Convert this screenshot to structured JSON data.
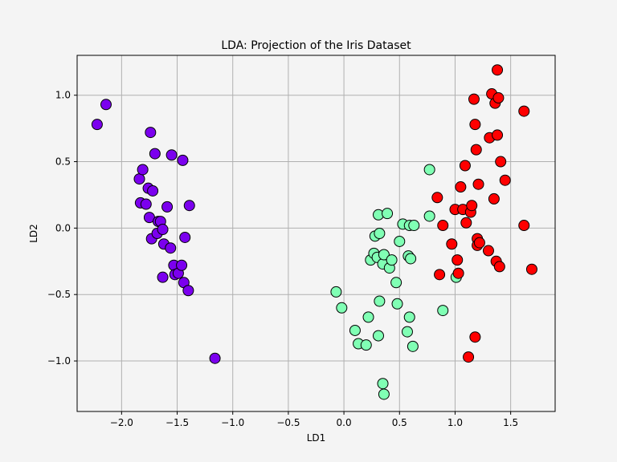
{
  "chart_data": {
    "type": "scatter",
    "title": "LDA: Projection of the Iris Dataset",
    "xlabel": "LD1",
    "ylabel": "LD2",
    "xlim": [
      -2.4,
      1.9
    ],
    "ylim": [
      -1.38,
      1.3
    ],
    "xticks": [
      -2.0,
      -1.5,
      -1.0,
      -0.5,
      0.0,
      0.5,
      1.0,
      1.5
    ],
    "xtick_labels": [
      "−2.0",
      "−1.5",
      "−1.0",
      "−0.5",
      "0.0",
      "0.5",
      "1.0",
      "1.5"
    ],
    "yticks": [
      -1.0,
      -0.5,
      0.0,
      0.5,
      1.0
    ],
    "ytick_labels": [
      "−1.0",
      "−0.5",
      "0.0",
      "0.5",
      "1.0"
    ],
    "grid": true,
    "series": [
      {
        "color": "#7b00ee",
        "points": [
          [
            -2.22,
            0.78
          ],
          [
            -2.14,
            0.93
          ],
          [
            -1.84,
            0.37
          ],
          [
            -1.83,
            0.19
          ],
          [
            -1.81,
            0.44
          ],
          [
            -1.78,
            0.18
          ],
          [
            -1.76,
            0.3
          ],
          [
            -1.75,
            0.08
          ],
          [
            -1.74,
            0.72
          ],
          [
            -1.73,
            -0.08
          ],
          [
            -1.72,
            0.28
          ],
          [
            -1.7,
            0.56
          ],
          [
            -1.68,
            -0.04
          ],
          [
            -1.67,
            0.05
          ],
          [
            -1.65,
            0.05
          ],
          [
            -1.63,
            -0.01
          ],
          [
            -1.63,
            -0.37
          ],
          [
            -1.62,
            -0.12
          ],
          [
            -1.59,
            0.16
          ],
          [
            -1.56,
            -0.15
          ],
          [
            -1.55,
            0.55
          ],
          [
            -1.53,
            -0.28
          ],
          [
            -1.52,
            -0.35
          ],
          [
            -1.49,
            -0.34
          ],
          [
            -1.46,
            -0.28
          ],
          [
            -1.45,
            0.51
          ],
          [
            -1.44,
            -0.41
          ],
          [
            -1.43,
            -0.07
          ],
          [
            -1.4,
            -0.47
          ],
          [
            -1.39,
            0.17
          ],
          [
            -1.16,
            -0.98
          ]
        ]
      },
      {
        "color": "#80ffb4",
        "points": [
          [
            -0.07,
            -0.48
          ],
          [
            -0.02,
            -0.6
          ],
          [
            0.1,
            -0.77
          ],
          [
            0.13,
            -0.87
          ],
          [
            0.2,
            -0.88
          ],
          [
            0.22,
            -0.67
          ],
          [
            0.24,
            -0.24
          ],
          [
            0.27,
            -0.19
          ],
          [
            0.28,
            -0.06
          ],
          [
            0.3,
            -0.22
          ],
          [
            0.31,
            0.1
          ],
          [
            0.31,
            -0.81
          ],
          [
            0.32,
            -0.04
          ],
          [
            0.32,
            -0.55
          ],
          [
            0.35,
            -1.17
          ],
          [
            0.35,
            -0.27
          ],
          [
            0.36,
            -0.2
          ],
          [
            0.36,
            -1.25
          ],
          [
            0.39,
            0.11
          ],
          [
            0.41,
            -0.3
          ],
          [
            0.43,
            -0.24
          ],
          [
            0.47,
            -0.41
          ],
          [
            0.48,
            -0.57
          ],
          [
            0.5,
            -0.1
          ],
          [
            0.53,
            0.03
          ],
          [
            0.57,
            -0.78
          ],
          [
            0.58,
            -0.21
          ],
          [
            0.59,
            -0.67
          ],
          [
            0.59,
            0.02
          ],
          [
            0.6,
            -0.23
          ],
          [
            0.62,
            -0.89
          ],
          [
            0.63,
            0.02
          ],
          [
            0.77,
            0.44
          ],
          [
            0.77,
            0.09
          ],
          [
            0.89,
            -0.62
          ],
          [
            1.01,
            -0.37
          ]
        ]
      },
      {
        "color": "#ff0000",
        "points": [
          [
            0.84,
            0.23
          ],
          [
            0.86,
            -0.35
          ],
          [
            0.89,
            0.02
          ],
          [
            0.97,
            -0.12
          ],
          [
            1.0,
            0.14
          ],
          [
            1.02,
            -0.24
          ],
          [
            1.03,
            -0.34
          ],
          [
            1.05,
            0.31
          ],
          [
            1.07,
            0.14
          ],
          [
            1.09,
            0.47
          ],
          [
            1.1,
            0.04
          ],
          [
            1.12,
            -0.97
          ],
          [
            1.14,
            0.12
          ],
          [
            1.15,
            0.17
          ],
          [
            1.17,
            0.97
          ],
          [
            1.18,
            0.78
          ],
          [
            1.18,
            -0.82
          ],
          [
            1.19,
            0.59
          ],
          [
            1.2,
            -0.08
          ],
          [
            1.2,
            -0.13
          ],
          [
            1.21,
            0.33
          ],
          [
            1.22,
            -0.11
          ],
          [
            1.3,
            -0.17
          ],
          [
            1.31,
            0.68
          ],
          [
            1.33,
            1.01
          ],
          [
            1.35,
            0.22
          ],
          [
            1.36,
            0.94
          ],
          [
            1.37,
            -0.25
          ],
          [
            1.38,
            0.7
          ],
          [
            1.38,
            1.19
          ],
          [
            1.39,
            0.98
          ],
          [
            1.4,
            -0.29
          ],
          [
            1.41,
            0.5
          ],
          [
            1.45,
            0.36
          ],
          [
            1.62,
            0.88
          ],
          [
            1.62,
            0.02
          ],
          [
            1.69,
            -0.31
          ]
        ]
      }
    ]
  }
}
